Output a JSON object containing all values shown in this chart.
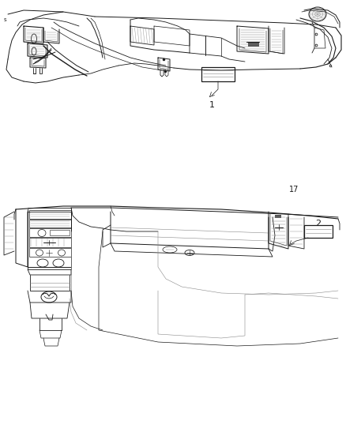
{
  "background_color": "#ffffff",
  "line_color": "#1a1a1a",
  "label_color": "#1a1a1a",
  "gray_color": "#888888",
  "light_gray": "#cccccc",
  "page_number": "17",
  "label1": "1",
  "label2": "2",
  "label_s": "s",
  "figsize": [
    4.38,
    5.33
  ],
  "dpi": 100
}
